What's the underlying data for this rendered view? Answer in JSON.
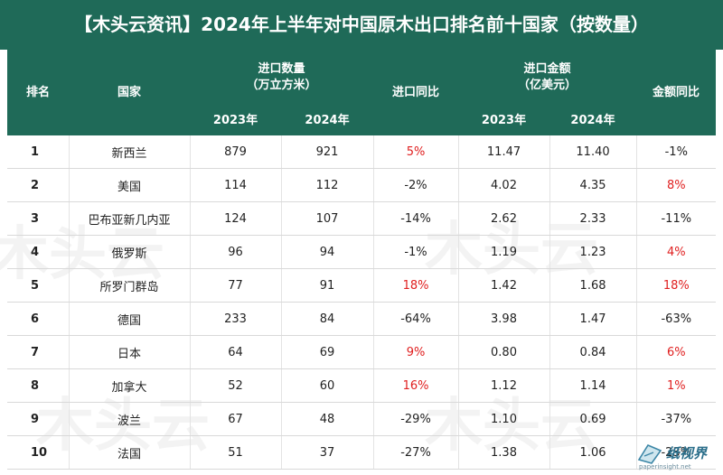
{
  "title": "【木头云资讯】2024年上半年对中国原木出口排名前十国家（按数量）",
  "headers": {
    "rank": "排名",
    "country": "国家",
    "volume_group_line1": "进口数量",
    "volume_group_line2": "（万立方米）",
    "volume_yoy": "进口同比",
    "amount_group_line1": "进口金额",
    "amount_group_line2": "（亿美元）",
    "amount_yoy": "金额同比",
    "year_2023": "2023年",
    "year_2024": "2024年"
  },
  "rows": [
    {
      "rank": "1",
      "country": "新西兰",
      "v2023": "879",
      "v2024": "921",
      "vyoy": "5%",
      "vyoy_red": true,
      "a2023": "11.47",
      "a2024": "11.40",
      "ayoy": "-1%",
      "ayoy_red": false
    },
    {
      "rank": "2",
      "country": "美国",
      "v2023": "114",
      "v2024": "112",
      "vyoy": "-2%",
      "vyoy_red": false,
      "a2023": "4.02",
      "a2024": "4.35",
      "ayoy": "8%",
      "ayoy_red": true
    },
    {
      "rank": "3",
      "country": "巴布亚新几内亚",
      "v2023": "124",
      "v2024": "107",
      "vyoy": "-14%",
      "vyoy_red": false,
      "a2023": "2.62",
      "a2024": "2.33",
      "ayoy": "-11%",
      "ayoy_red": false
    },
    {
      "rank": "4",
      "country": "俄罗斯",
      "v2023": "96",
      "v2024": "94",
      "vyoy": "-1%",
      "vyoy_red": false,
      "a2023": "1.19",
      "a2024": "1.23",
      "ayoy": "4%",
      "ayoy_red": true
    },
    {
      "rank": "5",
      "country": "所罗门群岛",
      "v2023": "77",
      "v2024": "91",
      "vyoy": "18%",
      "vyoy_red": true,
      "a2023": "1.42",
      "a2024": "1.68",
      "ayoy": "18%",
      "ayoy_red": true
    },
    {
      "rank": "6",
      "country": "德国",
      "v2023": "233",
      "v2024": "84",
      "vyoy": "-64%",
      "vyoy_red": false,
      "a2023": "3.98",
      "a2024": "1.47",
      "ayoy": "-63%",
      "ayoy_red": false
    },
    {
      "rank": "7",
      "country": "日本",
      "v2023": "64",
      "v2024": "69",
      "vyoy": "9%",
      "vyoy_red": true,
      "a2023": "0.80",
      "a2024": "0.84",
      "ayoy": "6%",
      "ayoy_red": true
    },
    {
      "rank": "8",
      "country": "加拿大",
      "v2023": "52",
      "v2024": "60",
      "vyoy": "16%",
      "vyoy_red": true,
      "a2023": "1.12",
      "a2024": "1.14",
      "ayoy": "1%",
      "ayoy_red": true
    },
    {
      "rank": "9",
      "country": "波兰",
      "v2023": "67",
      "v2024": "48",
      "vyoy": "-29%",
      "vyoy_red": false,
      "a2023": "1.10",
      "a2024": "0.69",
      "ayoy": "-37%",
      "ayoy_red": false
    },
    {
      "rank": "10",
      "country": "法国",
      "v2023": "51",
      "v2024": "37",
      "vyoy": "-27%",
      "vyoy_red": false,
      "a2023": "1.38",
      "a2024": "1.06",
      "ayoy": "-23%",
      "ayoy_red": false
    }
  ],
  "watermark_text": "木头云",
  "logo": {
    "text": "纸视界",
    "url": "paperinsight.net",
    "icon": "paper-logo-icon"
  },
  "colors": {
    "header_bg": "#1f6a58",
    "positive": "#e02020"
  }
}
